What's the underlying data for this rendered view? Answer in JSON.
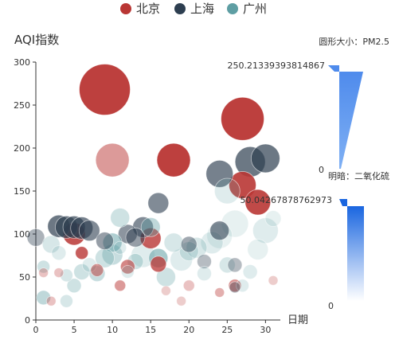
{
  "legend": {
    "items": [
      {
        "name": "北京",
        "color": "#b93634"
      },
      {
        "name": "上海",
        "color": "#2d3e50"
      },
      {
        "name": "广州",
        "color": "#5e9ea3"
      }
    ]
  },
  "visual_maps": {
    "size": {
      "title": "圆形大小：PM2.5",
      "max_label": "250.21339393814867",
      "min_label": "0",
      "color": "#5591ec"
    },
    "opacity": {
      "title": "明暗：二氧化硫",
      "max_label": "50.04267878762973",
      "min_label": "0",
      "color": "#2d73e6"
    }
  },
  "chart_data": {
    "type": "scatter",
    "title": "",
    "xlabel": "日期",
    "ylabel": "AQI指数",
    "xlim": [
      0,
      31
    ],
    "ylim": [
      0,
      300
    ],
    "x_ticks": [
      "0",
      "5",
      "10",
      "15",
      "20",
      "25",
      "30"
    ],
    "y_ticks": [
      "0",
      "50",
      "100",
      "150",
      "200",
      "250",
      "300"
    ],
    "grid": false,
    "legend_position": "top-center",
    "series": [
      {
        "name": "北京",
        "color": "#b93634",
        "points": [
          {
            "x": 9,
            "y": 268,
            "size": 32,
            "opacity": 0.95
          },
          {
            "x": 27,
            "y": 234,
            "size": 27,
            "opacity": 0.95
          },
          {
            "x": 10,
            "y": 186,
            "size": 21,
            "opacity": 0.5
          },
          {
            "x": 18,
            "y": 186,
            "size": 21,
            "opacity": 0.95
          },
          {
            "x": 27,
            "y": 157,
            "size": 17,
            "opacity": 0.9
          },
          {
            "x": 29,
            "y": 137,
            "size": 16,
            "opacity": 0.9
          },
          {
            "x": 5,
            "y": 100,
            "size": 14,
            "opacity": 0.85
          },
          {
            "x": 15,
            "y": 95,
            "size": 13,
            "opacity": 0.8
          },
          {
            "x": 6,
            "y": 78,
            "size": 8,
            "opacity": 0.8
          },
          {
            "x": 16,
            "y": 65,
            "size": 10,
            "opacity": 0.75
          },
          {
            "x": 12,
            "y": 62,
            "size": 9,
            "opacity": 0.6
          },
          {
            "x": 8,
            "y": 58,
            "size": 8,
            "opacity": 0.5
          },
          {
            "x": 1,
            "y": 55,
            "size": 6,
            "opacity": 0.3
          },
          {
            "x": 3,
            "y": 55,
            "size": 6,
            "opacity": 0.3
          },
          {
            "x": 11,
            "y": 40,
            "size": 7,
            "opacity": 0.5
          },
          {
            "x": 20,
            "y": 40,
            "size": 7,
            "opacity": 0.3
          },
          {
            "x": 26,
            "y": 40,
            "size": 8,
            "opacity": 0.55
          },
          {
            "x": 17,
            "y": 34,
            "size": 6,
            "opacity": 0.25
          },
          {
            "x": 24,
            "y": 32,
            "size": 6,
            "opacity": 0.4
          },
          {
            "x": 19,
            "y": 22,
            "size": 6,
            "opacity": 0.25
          },
          {
            "x": 31,
            "y": 46,
            "size": 6,
            "opacity": 0.25
          },
          {
            "x": 2,
            "y": 22,
            "size": 6,
            "opacity": 0.3
          }
        ]
      },
      {
        "name": "上海",
        "color": "#2d3e50",
        "points": [
          {
            "x": 28,
            "y": 184,
            "size": 19,
            "opacity": 0.7
          },
          {
            "x": 30,
            "y": 188,
            "size": 18,
            "opacity": 0.7
          },
          {
            "x": 24,
            "y": 170,
            "size": 17,
            "opacity": 0.65
          },
          {
            "x": 16,
            "y": 136,
            "size": 13,
            "opacity": 0.6
          },
          {
            "x": 3,
            "y": 109,
            "size": 14,
            "opacity": 0.7
          },
          {
            "x": 4,
            "y": 108,
            "size": 14,
            "opacity": 0.7
          },
          {
            "x": 5,
            "y": 108,
            "size": 14,
            "opacity": 0.7
          },
          {
            "x": 6,
            "y": 107,
            "size": 14,
            "opacity": 0.65
          },
          {
            "x": 7,
            "y": 104,
            "size": 13,
            "opacity": 0.6
          },
          {
            "x": 14,
            "y": 108,
            "size": 13,
            "opacity": 0.6
          },
          {
            "x": 12,
            "y": 100,
            "size": 12,
            "opacity": 0.55
          },
          {
            "x": 13,
            "y": 96,
            "size": 12,
            "opacity": 0.5
          },
          {
            "x": 24,
            "y": 104,
            "size": 12,
            "opacity": 0.6
          },
          {
            "x": 9,
            "y": 92,
            "size": 11,
            "opacity": 0.5
          },
          {
            "x": 0,
            "y": 96,
            "size": 11,
            "opacity": 0.4
          },
          {
            "x": 20,
            "y": 88,
            "size": 10,
            "opacity": 0.45
          },
          {
            "x": 26,
            "y": 64,
            "size": 9,
            "opacity": 0.35
          },
          {
            "x": 22,
            "y": 68,
            "size": 9,
            "opacity": 0.35
          },
          {
            "x": 26,
            "y": 38,
            "size": 7,
            "opacity": 0.35
          }
        ]
      },
      {
        "name": "广州",
        "color": "#5e9ea3",
        "points": [
          {
            "x": 25,
            "y": 150,
            "size": 16,
            "opacity": 0.2
          },
          {
            "x": 11,
            "y": 119,
            "size": 12,
            "opacity": 0.3
          },
          {
            "x": 26,
            "y": 112,
            "size": 17,
            "opacity": 0.15
          },
          {
            "x": 30,
            "y": 104,
            "size": 16,
            "opacity": 0.2
          },
          {
            "x": 29,
            "y": 82,
            "size": 13,
            "opacity": 0.15
          },
          {
            "x": 31,
            "y": 118,
            "size": 10,
            "opacity": 0.15
          },
          {
            "x": 15,
            "y": 108,
            "size": 12,
            "opacity": 0.4
          },
          {
            "x": 24,
            "y": 98,
            "size": 16,
            "opacity": 0.15
          },
          {
            "x": 23,
            "y": 90,
            "size": 14,
            "opacity": 0.2
          },
          {
            "x": 21,
            "y": 84,
            "size": 13,
            "opacity": 0.25
          },
          {
            "x": 20,
            "y": 80,
            "size": 12,
            "opacity": 0.25
          },
          {
            "x": 19,
            "y": 70,
            "size": 14,
            "opacity": 0.2
          },
          {
            "x": 18,
            "y": 90,
            "size": 12,
            "opacity": 0.25
          },
          {
            "x": 10,
            "y": 90,
            "size": 12,
            "opacity": 0.5
          },
          {
            "x": 10,
            "y": 76,
            "size": 13,
            "opacity": 0.35
          },
          {
            "x": 9,
            "y": 72,
            "size": 12,
            "opacity": 0.3
          },
          {
            "x": 14,
            "y": 75,
            "size": 15,
            "opacity": 0.2
          },
          {
            "x": 16,
            "y": 72,
            "size": 12,
            "opacity": 0.55
          },
          {
            "x": 13,
            "y": 68,
            "size": 10,
            "opacity": 0.3
          },
          {
            "x": 11,
            "y": 84,
            "size": 8,
            "opacity": 0.2
          },
          {
            "x": 12,
            "y": 56,
            "size": 8,
            "opacity": 0.2
          },
          {
            "x": 7,
            "y": 64,
            "size": 9,
            "opacity": 0.2
          },
          {
            "x": 6,
            "y": 56,
            "size": 10,
            "opacity": 0.3
          },
          {
            "x": 8,
            "y": 54,
            "size": 10,
            "opacity": 0.35
          },
          {
            "x": 5,
            "y": 40,
            "size": 9,
            "opacity": 0.3
          },
          {
            "x": 2,
            "y": 88,
            "size": 11,
            "opacity": 0.25
          },
          {
            "x": 3,
            "y": 78,
            "size": 9,
            "opacity": 0.2
          },
          {
            "x": 1,
            "y": 62,
            "size": 8,
            "opacity": 0.3
          },
          {
            "x": 4,
            "y": 52,
            "size": 8,
            "opacity": 0.25
          },
          {
            "x": 1,
            "y": 26,
            "size": 9,
            "opacity": 0.4
          },
          {
            "x": 4,
            "y": 22,
            "size": 8,
            "opacity": 0.25
          },
          {
            "x": 17,
            "y": 50,
            "size": 12,
            "opacity": 0.3
          },
          {
            "x": 22,
            "y": 54,
            "size": 9,
            "opacity": 0.2
          },
          {
            "x": 25,
            "y": 64,
            "size": 10,
            "opacity": 0.25
          },
          {
            "x": 28,
            "y": 56,
            "size": 9,
            "opacity": 0.2
          },
          {
            "x": 27,
            "y": 40,
            "size": 8,
            "opacity": 0.2
          }
        ]
      }
    ]
  }
}
